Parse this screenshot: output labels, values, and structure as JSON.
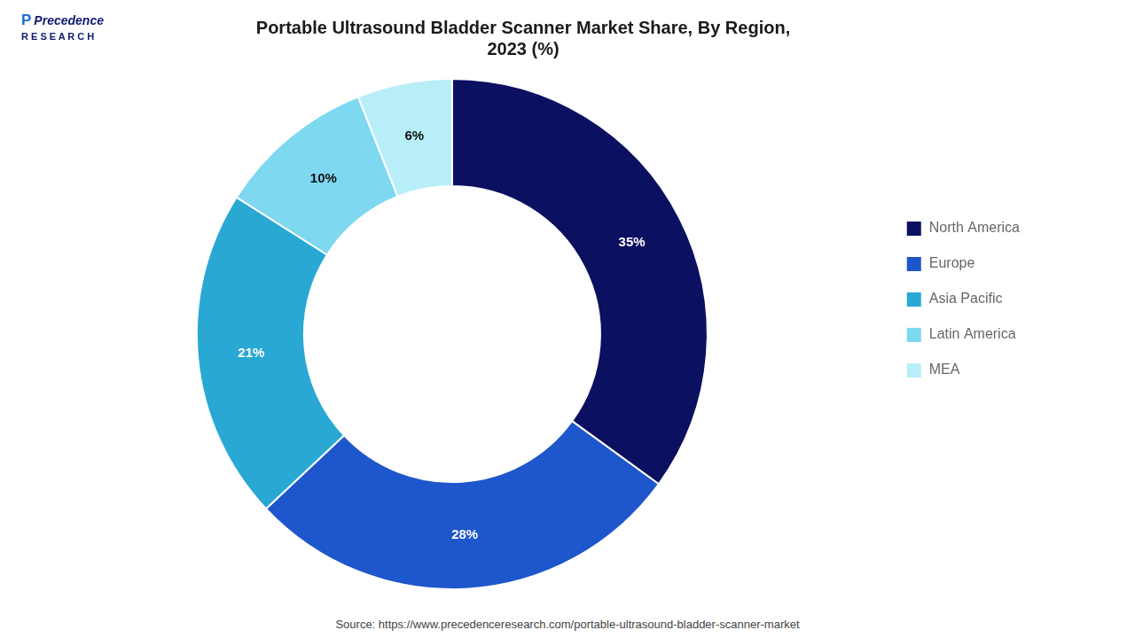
{
  "chart_data": {
    "type": "doughnut",
    "title": "Portable Ultrasound Bladder Scanner Market Share, By Region,\n2023 (%)",
    "categories": [
      "North America",
      "Europe",
      "Asia Pacific",
      "Latin America",
      "MEA"
    ],
    "values": [
      35,
      28,
      21,
      10,
      6
    ],
    "value_labels": [
      "35%",
      "28%",
      "21%",
      "10%",
      "6%"
    ],
    "colors": [
      "#0c1060",
      "#1e56cc",
      "#29a8d4",
      "#7dd8f0",
      "#b8eef8"
    ],
    "data_labels": true,
    "legend": "right",
    "annotations": [
      "P",
      "Precedence",
      "R E S E A R C H",
      "Source: https://www.precedenceresearch.com/portable-ultrasound-bladder-scanner-market"
    ]
  }
}
